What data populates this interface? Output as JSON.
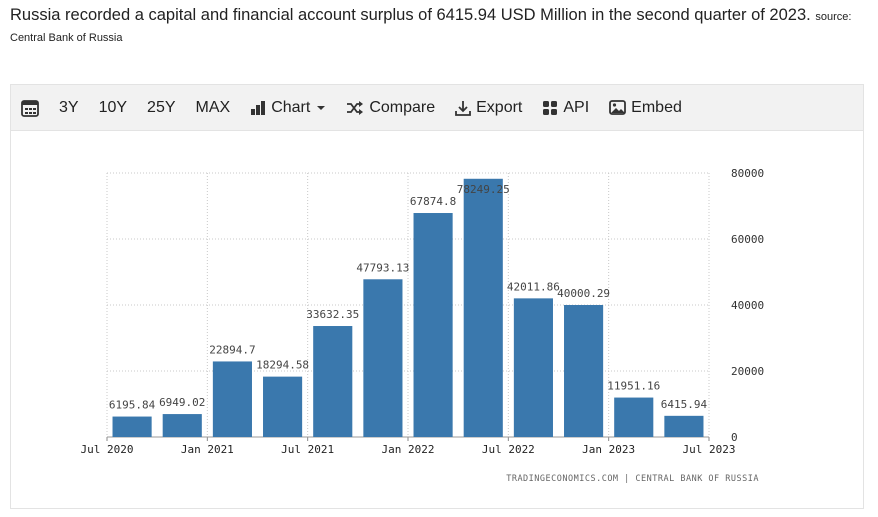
{
  "header": {
    "title": "Russia recorded a capital and financial account surplus of 6415.94 USD Million in the second quarter of 2023.",
    "source_label": "source:",
    "source_name": "Central Bank of Russia"
  },
  "toolbar": {
    "ranges": [
      "3Y",
      "10Y",
      "25Y",
      "MAX"
    ],
    "chart_label": "Chart",
    "compare_label": "Compare",
    "export_label": "Export",
    "api_label": "API",
    "embed_label": "Embed",
    "icons": [
      "calendar-icon",
      "bar-chart-icon",
      "caret-down-icon",
      "shuffle-icon",
      "download-icon",
      "api-grid-icon",
      "image-icon"
    ]
  },
  "chart_data": {
    "type": "bar",
    "categories": [
      "Q3 2020",
      "Q4 2020",
      "Q1 2021",
      "Q2 2021",
      "Q3 2021",
      "Q4 2021",
      "Q1 2022",
      "Q2 2022",
      "Q3 2022",
      "Q4 2022",
      "Q1 2023",
      "Q2 2023"
    ],
    "values": [
      6195.84,
      6949.02,
      22894.7,
      18294.58,
      33632.35,
      47793.13,
      67874.8,
      78249.25,
      42011.86,
      40000.29,
      11951.16,
      6415.94
    ],
    "value_labels": [
      "6195.84",
      "6949.02",
      "22894.7",
      "18294.58",
      "33632.35",
      "47793.13",
      "67874.8",
      "78249.25",
      "42011.86",
      "40000.29",
      "11951.16",
      "6415.94"
    ],
    "x_tick_labels": [
      {
        "label": "Jul 2020",
        "at": 0
      },
      {
        "label": "Jan 2021",
        "at": 2
      },
      {
        "label": "Jul 2021",
        "at": 4
      },
      {
        "label": "Jan 2022",
        "at": 6
      },
      {
        "label": "Jul 2022",
        "at": 8
      },
      {
        "label": "Jan 2023",
        "at": 10
      },
      {
        "label": "Jul 2023",
        "at": 12
      }
    ],
    "y_ticks": [
      0,
      20000,
      40000,
      60000,
      80000
    ],
    "ylim": [
      0,
      80000
    ],
    "y_axis_position": "right",
    "grid": true,
    "bar_color": "#3a78ad",
    "attribution": "TRADINGECONOMICS.COM | CENTRAL BANK OF RUSSIA"
  }
}
